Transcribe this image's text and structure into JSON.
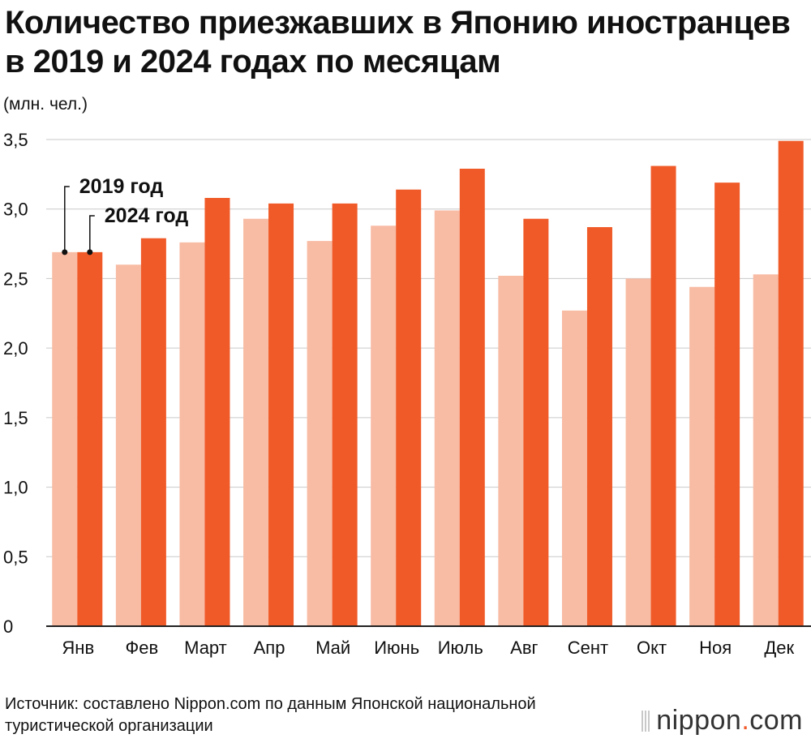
{
  "chart_data": {
    "type": "bar",
    "title": "Количество приезжавших в Японию иностранцев в 2019 и 2024 годах по месяцам",
    "ylabel": "(млн. чел.)",
    "xlabel": "",
    "ylim": [
      0,
      3.5
    ],
    "yticks": [
      "0",
      "0,5",
      "1,0",
      "1,5",
      "2,0",
      "2,5",
      "3,0",
      "3,5"
    ],
    "ytick_values": [
      0,
      0.5,
      1.0,
      1.5,
      2.0,
      2.5,
      3.0,
      3.5
    ],
    "grid": true,
    "categories": [
      "Янв",
      "Фев",
      "Март",
      "Апр",
      "Май",
      "Июнь",
      "Июль",
      "Авг",
      "Сент",
      "Окт",
      "Ноя",
      "Дек"
    ],
    "series": [
      {
        "name": "2019 год",
        "color": "#f8bba3",
        "values": [
          2.69,
          2.6,
          2.76,
          2.93,
          2.77,
          2.88,
          2.99,
          2.52,
          2.27,
          2.5,
          2.44,
          2.53
        ]
      },
      {
        "name": "2024 год",
        "color": "#f05a28",
        "values": [
          2.69,
          2.79,
          3.08,
          3.04,
          3.04,
          3.14,
          3.29,
          2.93,
          2.87,
          3.31,
          3.19,
          3.49
        ]
      }
    ]
  },
  "source": "Источник: составлено Nippon.com по данным Японской национальной туристической организации",
  "logo": {
    "name": "nippon",
    "dot": ".",
    "suffix": "com"
  }
}
